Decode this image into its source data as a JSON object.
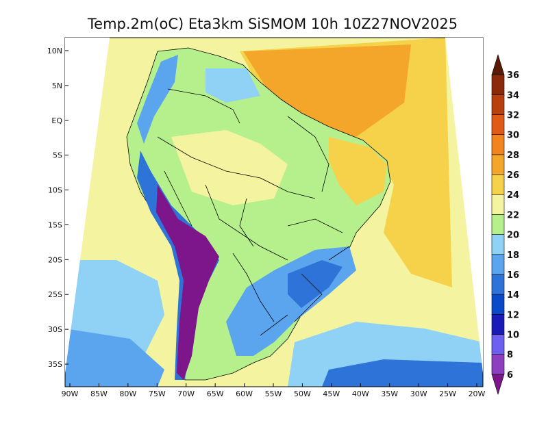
{
  "title": "Temp.2m(oC) Eta3km SiSMOM 10h 10Z27NOV2025",
  "map": {
    "x_axis": {
      "ticks": [
        "90W",
        "85W",
        "80W",
        "75W",
        "70W",
        "65W",
        "60W",
        "55W",
        "50W",
        "45W",
        "40W",
        "35W",
        "30W",
        "25W",
        "20W"
      ],
      "values": [
        -90,
        -85,
        -80,
        -75,
        -70,
        -65,
        -60,
        -55,
        -50,
        -45,
        -40,
        -35,
        -30,
        -25,
        -20
      ],
      "range": [
        -91,
        -20
      ]
    },
    "y_axis": {
      "ticks": [
        "10N",
        "5N",
        "EQ",
        "5S",
        "10S",
        "15S",
        "20S",
        "25S",
        "30S",
        "35S"
      ],
      "values": [
        10,
        5,
        0,
        -5,
        -10,
        -15,
        -20,
        -25,
        -30,
        -35
      ],
      "range": [
        -38,
        12
      ]
    }
  },
  "colorbar": {
    "levels": [
      "6",
      "8",
      "10",
      "12",
      "14",
      "16",
      "18",
      "20",
      "22",
      "24",
      "26",
      "28",
      "30",
      "32",
      "34",
      "36"
    ],
    "colors": [
      "#7d168a",
      "#8e3fbf",
      "#6d60f0",
      "#1a1ab8",
      "#0a49c8",
      "#2e74d8",
      "#5aa5ee",
      "#8fd2f5",
      "#b6f08c",
      "#f4f4a0",
      "#f6d14a",
      "#f4a62a",
      "#f28420",
      "#e05a18",
      "#b8400f",
      "#8a2a0a",
      "#5a1a08"
    ]
  },
  "colors": {
    "ocean_north": "#f6d14a",
    "ocean_south": "#5aa5ee",
    "borders": "#000000"
  }
}
